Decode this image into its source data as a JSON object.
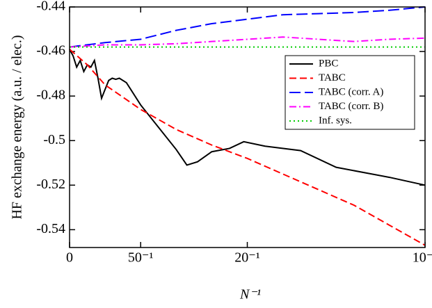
{
  "chart_data": {
    "type": "line",
    "x_label": "N⁻¹",
    "y_label": "HF exchange energy (a.u. / elec.)",
    "xlim": [
      0,
      0.1
    ],
    "ylim": [
      -0.548,
      -0.44
    ],
    "xticks": [
      {
        "value": 0,
        "label": "0"
      },
      {
        "value": 0.02,
        "label": "50⁻¹"
      },
      {
        "value": 0.05,
        "label": "20⁻¹"
      },
      {
        "value": 0.1,
        "label": "10⁻¹"
      }
    ],
    "yticks": [
      -0.54,
      -0.52,
      -0.5,
      -0.48,
      -0.46,
      -0.44
    ],
    "legend": "upper right",
    "series": [
      {
        "name": "PBC",
        "color": "#000000",
        "dash": "none",
        "x": [
          0,
          0.001,
          0.002,
          0.003,
          0.004,
          0.005,
          0.006,
          0.007,
          0.008,
          0.009,
          0.01,
          0.011,
          0.012,
          0.013,
          0.014,
          0.016,
          0.02,
          0.025,
          0.03,
          0.033,
          0.036,
          0.04,
          0.045,
          0.049,
          0.055,
          0.065,
          0.075,
          0.09,
          0.1
        ],
        "values": [
          -0.459,
          -0.462,
          -0.467,
          -0.464,
          -0.469,
          -0.466,
          -0.467,
          -0.464,
          -0.472,
          -0.481,
          -0.477,
          -0.473,
          -0.472,
          -0.4725,
          -0.472,
          -0.474,
          -0.484,
          -0.494,
          -0.504,
          -0.511,
          -0.5095,
          -0.505,
          -0.5035,
          -0.5005,
          -0.5025,
          -0.5045,
          -0.512,
          -0.5165,
          -0.52
        ]
      },
      {
        "name": "TABC",
        "color": "#ff0000",
        "dash": "10,5",
        "x": [
          0,
          0.005,
          0.01,
          0.02,
          0.03,
          0.04,
          0.05,
          0.06,
          0.07,
          0.08,
          0.09,
          0.1
        ],
        "values": [
          -0.459,
          -0.466,
          -0.475,
          -0.486,
          -0.495,
          -0.502,
          -0.508,
          -0.515,
          -0.522,
          -0.529,
          -0.538,
          -0.547
        ]
      },
      {
        "name": "TABC (corr. A)",
        "color": "#0000ff",
        "dash": "16,6",
        "x": [
          0,
          0.01,
          0.02,
          0.03,
          0.04,
          0.05,
          0.06,
          0.07,
          0.08,
          0.09,
          0.1
        ],
        "values": [
          -0.458,
          -0.456,
          -0.4545,
          -0.4505,
          -0.4475,
          -0.4455,
          -0.4435,
          -0.443,
          -0.4425,
          -0.4415,
          -0.44
        ]
      },
      {
        "name": "TABC (corr. B)",
        "color": "#ff00ff",
        "dash": "10,4,2,4",
        "x": [
          0,
          0.01,
          0.02,
          0.03,
          0.04,
          0.05,
          0.06,
          0.07,
          0.08,
          0.09,
          0.1
        ],
        "values": [
          -0.458,
          -0.457,
          -0.457,
          -0.4565,
          -0.4555,
          -0.4545,
          -0.4535,
          -0.4545,
          -0.4555,
          -0.4545,
          -0.454
        ]
      },
      {
        "name": "Inf. sys.",
        "color": "#00cc00",
        "dash": "2,4",
        "x": [
          0,
          0.1
        ],
        "values": [
          -0.458,
          -0.458
        ]
      }
    ]
  }
}
